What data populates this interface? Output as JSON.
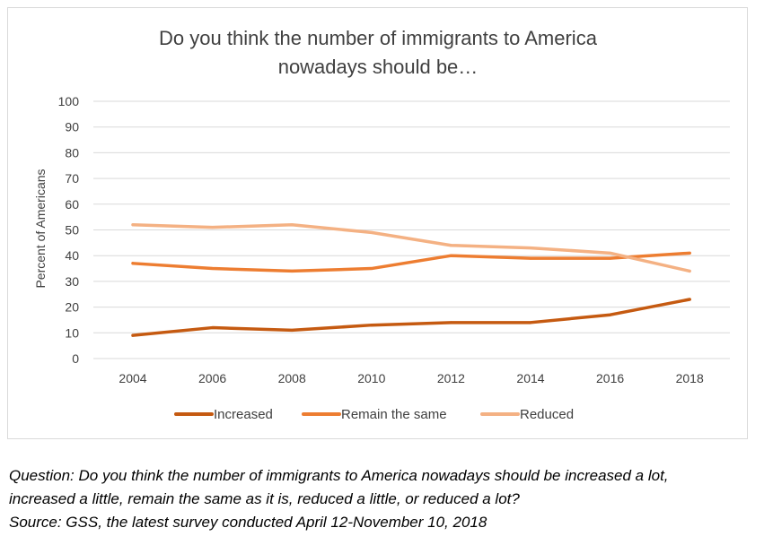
{
  "chart_data": {
    "type": "line",
    "title_lines": [
      "Do you think the number of immigrants to America",
      "nowadays should be…"
    ],
    "xlabel": "",
    "ylabel": "Percent of Americans",
    "ylim": [
      0,
      100
    ],
    "yticks": [
      0,
      10,
      20,
      30,
      40,
      50,
      60,
      70,
      80,
      90,
      100
    ],
    "categories": [
      "2004",
      "2006",
      "2008",
      "2010",
      "2012",
      "2014",
      "2016",
      "2018"
    ],
    "series": [
      {
        "name": "Increased",
        "color": "#c55a11",
        "values": [
          9,
          12,
          11,
          13,
          14,
          14,
          17,
          23
        ]
      },
      {
        "name": "Remain the same",
        "color": "#ed7d31",
        "values": [
          37,
          35,
          34,
          35,
          40,
          39,
          39,
          41
        ]
      },
      {
        "name": "Reduced",
        "color": "#f4b183",
        "values": [
          52,
          51,
          52,
          49,
          44,
          43,
          41,
          34
        ]
      }
    ],
    "grid": true,
    "legend_position": "bottom"
  },
  "notes": {
    "question_line1": "Question: Do you think the number of immigrants to America nowadays should be increased a lot,",
    "question_line2": "increased a little, remain the same as it is, reduced a little, or reduced a lot?",
    "source": "Source: GSS, the latest survey conducted April 12-November 10, 2018"
  }
}
